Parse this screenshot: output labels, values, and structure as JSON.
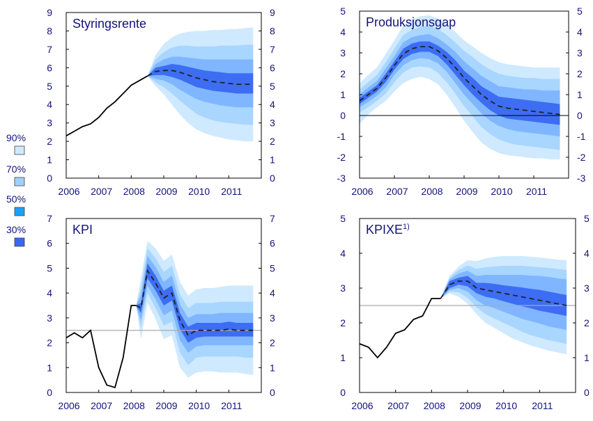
{
  "legend": {
    "items": [
      {
        "label": "90%",
        "color": "#cfe9ff"
      },
      {
        "label": "70%",
        "color": "#9fcfff"
      },
      {
        "label": "50%",
        "color": "#1aa0ff"
      },
      {
        "label": "30%",
        "color": "#3a66f0"
      }
    ]
  },
  "colors": {
    "band90": "#cfe9ff",
    "band70": "#a9d6ff",
    "band50": "#7fb6ff",
    "band30": "#3d6df2",
    "actual": "#000000",
    "projection": "#222222",
    "target_line": "#aaaaaa",
    "axis_text": "#13137a"
  },
  "chart_data": [
    {
      "type": "area",
      "title": "Styringsrente",
      "title_sup": "",
      "ylim": [
        0,
        9
      ],
      "yticks": [
        0,
        1,
        2,
        3,
        4,
        5,
        6,
        7,
        8,
        9
      ],
      "xlim": [
        2006,
        2012
      ],
      "xticks": [
        2006,
        2007,
        2008,
        2009,
        2010,
        2011
      ],
      "reference_line": null,
      "zero_line": false,
      "actual": {
        "x": [
          2006.0,
          2006.25,
          2006.5,
          2006.75,
          2007.0,
          2007.25,
          2007.5,
          2007.75,
          2008.0,
          2008.25,
          2008.5
        ],
        "y": [
          2.3,
          2.55,
          2.8,
          2.95,
          3.3,
          3.8,
          4.15,
          4.6,
          5.05,
          5.3,
          5.55
        ]
      },
      "fan": {
        "x": [
          2008.5,
          2008.75,
          2009.0,
          2009.25,
          2009.5,
          2009.75,
          2010.0,
          2010.25,
          2010.5,
          2010.75,
          2011.0,
          2011.25,
          2011.5,
          2011.75
        ],
        "median": [
          5.55,
          5.8,
          5.85,
          5.85,
          5.75,
          5.6,
          5.45,
          5.35,
          5.25,
          5.2,
          5.15,
          5.1,
          5.1,
          5.1
        ],
        "b30": {
          "lo": [
            5.55,
            5.6,
            5.6,
            5.5,
            5.35,
            5.15,
            4.95,
            4.85,
            4.75,
            4.7,
            4.65,
            4.6,
            4.6,
            4.6
          ],
          "hi": [
            5.55,
            6.0,
            6.1,
            6.2,
            6.15,
            6.05,
            5.95,
            5.85,
            5.8,
            5.75,
            5.7,
            5.7,
            5.7,
            5.7
          ]
        },
        "b50": {
          "lo": [
            5.55,
            5.4,
            5.3,
            5.1,
            4.8,
            4.55,
            4.3,
            4.15,
            4.05,
            3.95,
            3.9,
            3.85,
            3.85,
            3.85
          ],
          "hi": [
            5.55,
            6.2,
            6.45,
            6.6,
            6.6,
            6.55,
            6.5,
            6.45,
            6.45,
            6.45,
            6.45,
            6.45,
            6.45,
            6.45
          ]
        },
        "b70": {
          "lo": [
            5.55,
            5.2,
            4.95,
            4.6,
            4.2,
            3.85,
            3.5,
            3.3,
            3.15,
            3.05,
            3.0,
            2.95,
            2.9,
            2.9
          ],
          "hi": [
            5.55,
            6.45,
            6.85,
            7.1,
            7.2,
            7.2,
            7.15,
            7.15,
            7.15,
            7.2,
            7.2,
            7.2,
            7.25,
            7.25
          ]
        },
        "b90": {
          "lo": [
            5.55,
            5.0,
            4.55,
            4.0,
            3.45,
            3.0,
            2.65,
            2.45,
            2.3,
            2.2,
            2.1,
            2.05,
            2.0,
            2.0
          ],
          "hi": [
            5.55,
            6.7,
            7.3,
            7.65,
            7.85,
            7.95,
            8.0,
            8.0,
            8.05,
            8.05,
            8.1,
            8.1,
            8.15,
            8.2
          ]
        }
      }
    },
    {
      "type": "area",
      "title": "Produksjonsgap",
      "title_sup": "",
      "ylim": [
        -3,
        5
      ],
      "yticks": [
        -3,
        -2,
        -1,
        0,
        1,
        2,
        3,
        4,
        5
      ],
      "xlim": [
        2006,
        2012
      ],
      "xticks": [
        2006,
        2007,
        2008,
        2009,
        2010,
        2011
      ],
      "reference_line": null,
      "zero_line": true,
      "actual": null,
      "fan": {
        "x": [
          2006.0,
          2006.25,
          2006.5,
          2006.75,
          2007.0,
          2007.25,
          2007.5,
          2007.75,
          2008.0,
          2008.25,
          2008.5,
          2008.75,
          2009.0,
          2009.25,
          2009.5,
          2009.75,
          2010.0,
          2010.25,
          2010.5,
          2010.75,
          2011.0,
          2011.25,
          2011.5,
          2011.75
        ],
        "median": [
          0.7,
          1.0,
          1.3,
          1.8,
          2.4,
          2.95,
          3.2,
          3.3,
          3.3,
          3.1,
          2.75,
          2.3,
          1.8,
          1.4,
          1.0,
          0.7,
          0.45,
          0.35,
          0.3,
          0.25,
          0.2,
          0.15,
          0.1,
          0.05
        ],
        "b30": {
          "lo": [
            0.55,
            0.85,
            1.15,
            1.6,
            2.2,
            2.7,
            2.95,
            3.05,
            3.05,
            2.85,
            2.45,
            1.95,
            1.45,
            1.0,
            0.6,
            0.25,
            0.0,
            -0.15,
            -0.2,
            -0.25,
            -0.3,
            -0.35,
            -0.4,
            -0.45
          ],
          "hi": [
            0.85,
            1.15,
            1.45,
            2.0,
            2.6,
            3.2,
            3.45,
            3.55,
            3.55,
            3.35,
            3.05,
            2.65,
            2.15,
            1.8,
            1.4,
            1.15,
            0.9,
            0.85,
            0.8,
            0.75,
            0.7,
            0.65,
            0.6,
            0.55
          ]
        },
        "b50": {
          "lo": [
            0.4,
            0.65,
            0.95,
            1.35,
            1.95,
            2.4,
            2.65,
            2.75,
            2.7,
            2.5,
            2.1,
            1.55,
            1.0,
            0.55,
            0.1,
            -0.25,
            -0.5,
            -0.65,
            -0.75,
            -0.8,
            -0.85,
            -0.9,
            -0.95,
            -1.0
          ],
          "hi": [
            1.0,
            1.35,
            1.65,
            2.25,
            2.85,
            3.5,
            3.75,
            3.85,
            3.9,
            3.7,
            3.4,
            3.05,
            2.6,
            2.25,
            1.9,
            1.65,
            1.4,
            1.35,
            1.3,
            1.25,
            1.25,
            1.2,
            1.2,
            1.2
          ]
        },
        "b70": {
          "lo": [
            0.15,
            0.4,
            0.7,
            1.05,
            1.6,
            2.05,
            2.3,
            2.35,
            2.3,
            2.05,
            1.6,
            1.05,
            0.45,
            -0.05,
            -0.55,
            -0.9,
            -1.15,
            -1.3,
            -1.4,
            -1.45,
            -1.5,
            -1.55,
            -1.6,
            -1.65
          ],
          "hi": [
            1.25,
            1.6,
            1.95,
            2.55,
            3.2,
            3.85,
            4.1,
            4.25,
            4.3,
            4.15,
            3.85,
            3.5,
            3.1,
            2.8,
            2.45,
            2.2,
            2.0,
            1.9,
            1.85,
            1.8,
            1.8,
            1.75,
            1.75,
            1.75
          ]
        },
        "b90": {
          "lo": [
            -0.4,
            0.05,
            0.4,
            0.7,
            1.15,
            1.55,
            1.75,
            1.85,
            1.75,
            1.5,
            1.0,
            0.4,
            -0.25,
            -0.8,
            -1.3,
            -1.6,
            -1.8,
            -1.9,
            -1.95,
            -2.0,
            -2.05,
            -2.05,
            -2.1,
            -2.1
          ],
          "hi": [
            1.55,
            1.95,
            2.3,
            2.95,
            3.6,
            4.3,
            4.6,
            4.75,
            4.8,
            4.65,
            4.35,
            4.0,
            3.6,
            3.3,
            3.0,
            2.75,
            2.55,
            2.45,
            2.4,
            2.35,
            2.3,
            2.3,
            2.3,
            2.3
          ]
        }
      }
    },
    {
      "type": "area",
      "title": "KPI",
      "title_sup": "",
      "ylim": [
        0,
        7
      ],
      "yticks": [
        0,
        1,
        2,
        3,
        4,
        5,
        6,
        7
      ],
      "xlim": [
        2006,
        2012
      ],
      "xticks": [
        2006,
        2007,
        2008,
        2009,
        2010,
        2011
      ],
      "reference_line": 2.5,
      "zero_line": false,
      "actual": {
        "x": [
          2006.0,
          2006.25,
          2006.5,
          2006.75,
          2007.0,
          2007.25,
          2007.5,
          2007.75,
          2008.0,
          2008.15
        ],
        "y": [
          2.2,
          2.4,
          2.2,
          2.5,
          1.0,
          0.3,
          0.2,
          1.4,
          3.5,
          3.5
        ]
      },
      "fan": {
        "x": [
          2008.15,
          2008.3,
          2008.5,
          2008.75,
          2009.0,
          2009.25,
          2009.5,
          2009.75,
          2010.0,
          2010.25,
          2010.5,
          2010.75,
          2011.0,
          2011.25,
          2011.5,
          2011.75
        ],
        "median": [
          3.5,
          3.4,
          4.9,
          4.4,
          3.8,
          4.0,
          2.9,
          2.3,
          2.5,
          2.5,
          2.5,
          2.5,
          2.55,
          2.5,
          2.5,
          2.5
        ],
        "b30": {
          "lo": [
            3.5,
            3.2,
            4.6,
            4.1,
            3.5,
            3.7,
            2.55,
            2.0,
            2.2,
            2.25,
            2.25,
            2.25,
            2.25,
            2.25,
            2.25,
            2.25
          ],
          "hi": [
            3.5,
            3.6,
            5.2,
            4.7,
            4.1,
            4.3,
            3.2,
            2.65,
            2.8,
            2.8,
            2.8,
            2.8,
            2.85,
            2.8,
            2.8,
            2.8
          ]
        },
        "b50": {
          "lo": [
            3.5,
            2.9,
            4.3,
            3.75,
            3.1,
            3.3,
            2.1,
            1.6,
            1.85,
            1.9,
            1.9,
            1.9,
            1.9,
            1.9,
            1.9,
            1.9
          ],
          "hi": [
            3.5,
            3.9,
            5.5,
            5.05,
            4.45,
            4.7,
            3.55,
            3.0,
            3.15,
            3.15,
            3.15,
            3.2,
            3.2,
            3.2,
            3.2,
            3.2
          ]
        },
        "b70": {
          "lo": [
            3.5,
            2.6,
            4.0,
            3.4,
            2.7,
            2.85,
            1.6,
            1.1,
            1.4,
            1.45,
            1.45,
            1.45,
            1.45,
            1.45,
            1.4,
            1.4
          ],
          "hi": [
            3.5,
            4.2,
            5.8,
            5.4,
            4.85,
            5.1,
            3.95,
            3.4,
            3.6,
            3.6,
            3.6,
            3.65,
            3.65,
            3.65,
            3.65,
            3.65
          ]
        },
        "b90": {
          "lo": [
            3.5,
            2.15,
            3.6,
            2.95,
            2.15,
            2.3,
            1.0,
            0.6,
            0.8,
            0.85,
            0.85,
            0.8,
            0.8,
            0.8,
            0.75,
            0.7
          ],
          "hi": [
            3.5,
            4.6,
            6.1,
            5.8,
            5.3,
            5.55,
            4.45,
            3.9,
            4.15,
            4.2,
            4.2,
            4.25,
            4.3,
            4.3,
            4.3,
            4.3
          ]
        }
      }
    },
    {
      "type": "area",
      "title": "KPIXE",
      "title_sup": "1)",
      "ylim": [
        0,
        5
      ],
      "yticks": [
        0,
        1,
        2,
        3,
        4,
        5
      ],
      "xlim": [
        2006,
        2012
      ],
      "xticks": [
        2006,
        2007,
        2008,
        2009,
        2010,
        2011
      ],
      "reference_line": 2.5,
      "zero_line": false,
      "actual": {
        "x": [
          2006.0,
          2006.25,
          2006.5,
          2006.75,
          2007.0,
          2007.25,
          2007.5,
          2007.75,
          2008.0,
          2008.25
        ],
        "y": [
          1.4,
          1.3,
          1.0,
          1.3,
          1.7,
          1.8,
          2.1,
          2.2,
          2.7,
          2.7
        ]
      },
      "fan": {
        "x": [
          2008.25,
          2008.5,
          2008.75,
          2009.0,
          2009.25,
          2009.5,
          2009.75,
          2010.0,
          2010.25,
          2010.5,
          2010.75,
          2011.0,
          2011.25,
          2011.5,
          2011.75
        ],
        "median": [
          2.7,
          3.1,
          3.2,
          3.2,
          3.0,
          2.95,
          2.9,
          2.85,
          2.8,
          2.75,
          2.7,
          2.65,
          2.6,
          2.55,
          2.5
        ],
        "b30": {
          "lo": [
            2.7,
            3.0,
            3.1,
            3.05,
            2.85,
            2.75,
            2.7,
            2.62,
            2.55,
            2.48,
            2.42,
            2.35,
            2.3,
            2.25,
            2.2
          ],
          "hi": [
            2.7,
            3.2,
            3.3,
            3.35,
            3.15,
            3.15,
            3.12,
            3.08,
            3.05,
            3.02,
            2.98,
            2.95,
            2.9,
            2.85,
            2.8
          ]
        },
        "b50": {
          "lo": [
            2.7,
            2.95,
            3.0,
            2.9,
            2.65,
            2.5,
            2.42,
            2.32,
            2.22,
            2.12,
            2.05,
            1.98,
            1.9,
            1.85,
            1.8
          ],
          "hi": [
            2.7,
            3.25,
            3.42,
            3.5,
            3.35,
            3.38,
            3.38,
            3.38,
            3.38,
            3.38,
            3.36,
            3.35,
            3.32,
            3.28,
            3.25
          ]
        },
        "b70": {
          "lo": [
            2.7,
            2.9,
            2.88,
            2.72,
            2.45,
            2.25,
            2.12,
            2.0,
            1.88,
            1.75,
            1.65,
            1.58,
            1.5,
            1.45,
            1.4
          ],
          "hi": [
            2.7,
            3.3,
            3.52,
            3.65,
            3.55,
            3.6,
            3.62,
            3.64,
            3.64,
            3.64,
            3.62,
            3.6,
            3.58,
            3.55,
            3.52
          ]
        },
        "b90": {
          "lo": [
            2.7,
            2.85,
            2.75,
            2.55,
            2.25,
            2.0,
            1.85,
            1.7,
            1.55,
            1.45,
            1.35,
            1.28,
            1.2,
            1.15,
            1.1
          ],
          "hi": [
            2.7,
            3.35,
            3.62,
            3.8,
            3.78,
            3.85,
            3.9,
            3.92,
            3.92,
            3.92,
            3.9,
            3.88,
            3.85,
            3.82,
            3.8
          ]
        }
      }
    }
  ]
}
